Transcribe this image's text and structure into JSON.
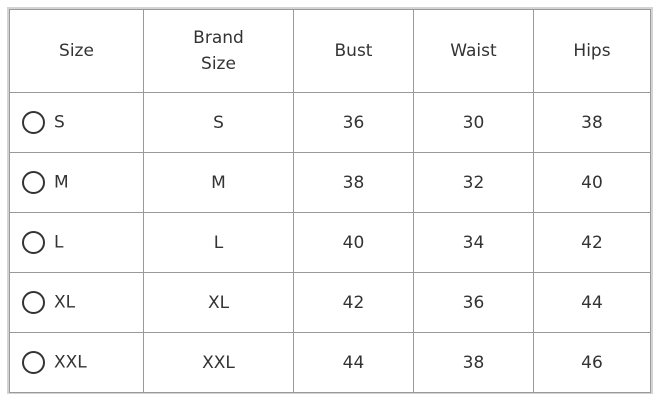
{
  "headers": [
    "Size",
    "Brand\nSize",
    "Bust",
    "Waist",
    "Hips"
  ],
  "header_lines": {
    "brand_1": "Brand",
    "brand_2": "Size"
  },
  "rows": [
    {
      "size": "S",
      "brand_size": "S",
      "bust": "36",
      "waist": "30",
      "hips": "38",
      "selected": false
    },
    {
      "size": "M",
      "brand_size": "M",
      "bust": "38",
      "waist": "32",
      "hips": "40",
      "selected": false
    },
    {
      "size": "L",
      "brand_size": "L",
      "bust": "40",
      "waist": "34",
      "hips": "42",
      "selected": false
    },
    {
      "size": "XL",
      "brand_size": "XL",
      "bust": "42",
      "waist": "36",
      "hips": "44",
      "selected": false
    },
    {
      "size": "XXL",
      "brand_size": "XXL",
      "bust": "44",
      "waist": "38",
      "hips": "46",
      "selected": false
    }
  ]
}
